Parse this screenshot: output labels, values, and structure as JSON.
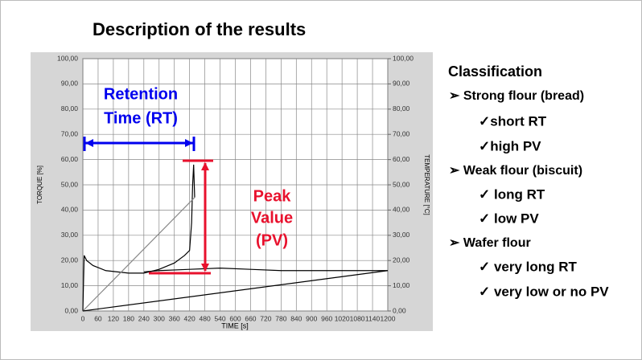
{
  "chart_data": {
    "type": "line",
    "title": "Description of the results",
    "xlabel": "TIME [s]",
    "ylabel": "TORQUE [%]",
    "y2label": "TEMPERATURE [°C]",
    "xlim": [
      0,
      1200
    ],
    "xticks": [
      0,
      60,
      120,
      180,
      240,
      300,
      360,
      420,
      480,
      540,
      600,
      660,
      720,
      780,
      840,
      900,
      960,
      1020,
      1080,
      1140,
      1200
    ],
    "ylim": [
      0,
      100
    ],
    "yticks": [
      {
        "value": 0,
        "label": "0,00"
      },
      {
        "value": 10,
        "label": "10,00"
      },
      {
        "value": 20,
        "label": "20,00"
      },
      {
        "value": 30,
        "label": "30,00"
      },
      {
        "value": 40,
        "label": "40,00"
      },
      {
        "value": 50,
        "label": "50,00"
      },
      {
        "value": 60,
        "label": "60,00"
      },
      {
        "value": 70,
        "label": "70,00"
      },
      {
        "value": 80,
        "label": "80,00"
      },
      {
        "value": 90,
        "label": "90,00"
      },
      {
        "value": 100,
        "label": "100,00"
      }
    ],
    "y2lim": [
      0,
      100
    ],
    "y2ticks": [
      {
        "value": 0,
        "label": "0,00"
      },
      {
        "value": 10,
        "label": "10,00"
      },
      {
        "value": 20,
        "label": "20,00"
      },
      {
        "value": 30,
        "label": "30,00"
      },
      {
        "value": 40,
        "label": "40,00"
      },
      {
        "value": 50,
        "label": "50,00"
      },
      {
        "value": 60,
        "label": "60,00"
      },
      {
        "value": 70,
        "label": "70,00"
      },
      {
        "value": 80,
        "label": "80,00"
      },
      {
        "value": 90,
        "label": "90,00"
      },
      {
        "value": 100,
        "label": "100,00"
      }
    ],
    "grid": true,
    "series": [
      {
        "color": "#000000",
        "x": [
          0,
          5,
          15,
          40,
          90,
          180,
          240,
          300,
          360,
          400,
          420,
          428,
          432,
          436,
          440
        ],
        "values": [
          0,
          22,
          20,
          18,
          16,
          15,
          15,
          16.5,
          19,
          22,
          24,
          35,
          50,
          58,
          45
        ]
      },
      {
        "color": "#000000",
        "x": [
          240,
          300,
          420,
          540,
          660,
          780,
          900,
          1020,
          1140,
          1200
        ],
        "values": [
          15.5,
          16,
          16.5,
          17,
          16.5,
          16,
          16,
          16,
          16,
          16
        ]
      },
      {
        "color": "#888888",
        "axis": "y2",
        "x": [
          0,
          440
        ],
        "values": [
          0,
          45
        ]
      },
      {
        "color": "#000000",
        "axis": "y2",
        "x": [
          0,
          1200
        ],
        "values": [
          0,
          16
        ]
      }
    ],
    "annotations": {
      "rt": [
        "Retention",
        "Time (RT)"
      ],
      "pv": [
        "Peak",
        "Value",
        "(PV)"
      ]
    }
  },
  "classification": {
    "heading": "Classification",
    "items": [
      "➢ Strong flour (bread)",
      "✓short RT",
      "✓high PV",
      "➢ Weak flour (biscuit)",
      "✓ long RT",
      "✓ low PV",
      "➢ Wafer flour",
      "✓ very long RT",
      "✓ very low or no PV"
    ]
  }
}
